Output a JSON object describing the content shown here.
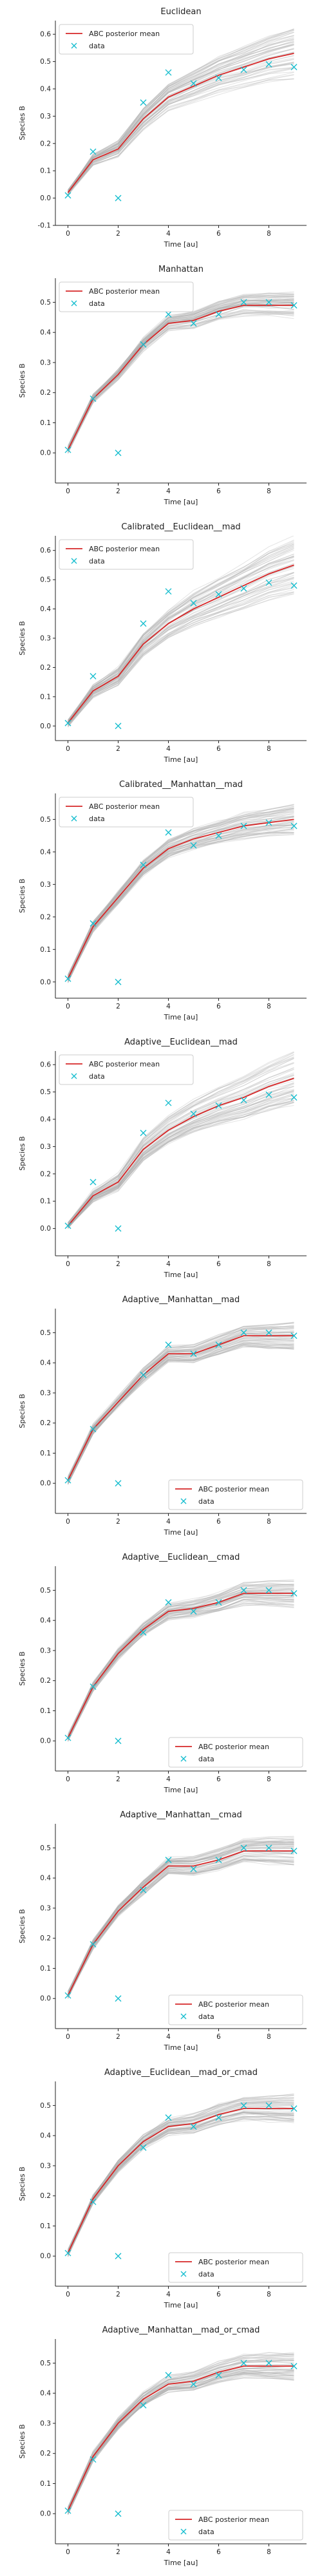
{
  "chart_data": [
    {
      "type": "line",
      "title": "Euclidean",
      "xlabel": "Time [au]",
      "ylabel": "Species B",
      "xlim": [
        -0.5,
        9.5
      ],
      "ylim": [
        -0.1,
        0.65
      ],
      "xticks": [
        0,
        2,
        4,
        6,
        8
      ],
      "yticks": [
        -0.1,
        0.0,
        0.1,
        0.2,
        0.3,
        0.4,
        0.5,
        0.6
      ],
      "grid": false,
      "legend": "upper-left",
      "legend_labels": [
        "ABC posterior mean",
        "data"
      ],
      "colors": {
        "mean": "#d62728",
        "data": "#17becf",
        "samples": "#b0b0b0"
      },
      "series": [
        {
          "kind": "mean-line",
          "x": [
            0,
            1,
            2,
            3,
            4,
            5,
            6,
            7,
            8,
            9
          ],
          "values": [
            0.02,
            0.14,
            0.18,
            0.29,
            0.37,
            0.41,
            0.45,
            0.48,
            0.51,
            0.53
          ]
        },
        {
          "kind": "data-points",
          "x": [
            0,
            1,
            2,
            3,
            4,
            5,
            6,
            7,
            8,
            9
          ],
          "values": [
            0.01,
            0.17,
            0.0,
            0.35,
            0.46,
            0.42,
            0.44,
            0.47,
            0.49,
            0.48
          ]
        }
      ]
    },
    {
      "type": "line",
      "title": "Manhattan",
      "xlabel": "Time [au]",
      "ylabel": "Species B",
      "xlim": [
        -0.5,
        9.5
      ],
      "ylim": [
        -0.1,
        0.58
      ],
      "xticks": [
        0,
        2,
        4,
        6,
        8
      ],
      "yticks": [
        0.0,
        0.1,
        0.2,
        0.3,
        0.4,
        0.5
      ],
      "grid": false,
      "legend": "upper-left",
      "legend_labels": [
        "ABC posterior mean",
        "data"
      ],
      "colors": {
        "mean": "#d62728",
        "data": "#17becf",
        "samples": "#b0b0b0"
      },
      "series": [
        {
          "kind": "mean-line",
          "x": [
            0,
            1,
            2,
            3,
            4,
            5,
            6,
            7,
            8,
            9
          ],
          "values": [
            0.01,
            0.18,
            0.26,
            0.36,
            0.43,
            0.44,
            0.47,
            0.49,
            0.49,
            0.49
          ]
        },
        {
          "kind": "data-points",
          "x": [
            0,
            1,
            2,
            3,
            4,
            5,
            6,
            7,
            8,
            9
          ],
          "values": [
            0.01,
            0.18,
            0.0,
            0.36,
            0.46,
            0.43,
            0.46,
            0.5,
            0.5,
            0.49
          ]
        }
      ]
    },
    {
      "type": "line",
      "title": "Calibrated__Euclidean__mad",
      "xlabel": "Time [au]",
      "ylabel": "Species B",
      "xlim": [
        -0.5,
        9.5
      ],
      "ylim": [
        -0.05,
        0.65
      ],
      "xticks": [
        0,
        2,
        4,
        6,
        8
      ],
      "yticks": [
        0.0,
        0.1,
        0.2,
        0.3,
        0.4,
        0.5,
        0.6
      ],
      "grid": false,
      "legend": "upper-left",
      "legend_labels": [
        "ABC posterior mean",
        "data"
      ],
      "colors": {
        "mean": "#d62728",
        "data": "#17becf",
        "samples": "#b0b0b0"
      },
      "series": [
        {
          "kind": "mean-line",
          "x": [
            0,
            1,
            2,
            3,
            4,
            5,
            6,
            7,
            8,
            9
          ],
          "values": [
            0.01,
            0.12,
            0.17,
            0.28,
            0.35,
            0.4,
            0.44,
            0.48,
            0.52,
            0.55
          ]
        },
        {
          "kind": "data-points",
          "x": [
            0,
            1,
            2,
            3,
            4,
            5,
            6,
            7,
            8,
            9
          ],
          "values": [
            0.01,
            0.17,
            0.0,
            0.35,
            0.46,
            0.42,
            0.45,
            0.47,
            0.49,
            0.48
          ]
        }
      ]
    },
    {
      "type": "line",
      "title": "Calibrated__Manhattan__mad",
      "xlabel": "Time [au]",
      "ylabel": "Species B",
      "xlim": [
        -0.5,
        9.5
      ],
      "ylim": [
        -0.05,
        0.58
      ],
      "xticks": [
        0,
        2,
        4,
        6,
        8
      ],
      "yticks": [
        0.0,
        0.1,
        0.2,
        0.3,
        0.4,
        0.5
      ],
      "grid": false,
      "legend": "upper-left",
      "legend_labels": [
        "ABC posterior mean",
        "data"
      ],
      "colors": {
        "mean": "#d62728",
        "data": "#17becf",
        "samples": "#b0b0b0"
      },
      "series": [
        {
          "kind": "mean-line",
          "x": [
            0,
            1,
            2,
            3,
            4,
            5,
            6,
            7,
            8,
            9
          ],
          "values": [
            0.01,
            0.17,
            0.26,
            0.35,
            0.41,
            0.44,
            0.46,
            0.48,
            0.49,
            0.5
          ]
        },
        {
          "kind": "data-points",
          "x": [
            0,
            1,
            2,
            3,
            4,
            5,
            6,
            7,
            8,
            9
          ],
          "values": [
            0.01,
            0.18,
            0.0,
            0.36,
            0.46,
            0.42,
            0.45,
            0.48,
            0.49,
            0.48
          ]
        }
      ]
    },
    {
      "type": "line",
      "title": "Adaptive__Euclidean__mad",
      "xlabel": "Time [au]",
      "ylabel": "Species B",
      "xlim": [
        -0.5,
        9.5
      ],
      "ylim": [
        -0.1,
        0.65
      ],
      "xticks": [
        0,
        2,
        4,
        6,
        8
      ],
      "yticks": [
        0.0,
        0.1,
        0.2,
        0.3,
        0.4,
        0.5,
        0.6
      ],
      "grid": false,
      "legend": "upper-left",
      "legend_labels": [
        "ABC posterior mean",
        "data"
      ],
      "colors": {
        "mean": "#d62728",
        "data": "#17becf",
        "samples": "#b0b0b0"
      },
      "series": [
        {
          "kind": "mean-line",
          "x": [
            0,
            1,
            2,
            3,
            4,
            5,
            6,
            7,
            8,
            9
          ],
          "values": [
            0.01,
            0.12,
            0.17,
            0.29,
            0.36,
            0.41,
            0.45,
            0.48,
            0.52,
            0.55
          ]
        },
        {
          "kind": "data-points",
          "x": [
            0,
            1,
            2,
            3,
            4,
            5,
            6,
            7,
            8,
            9
          ],
          "values": [
            0.01,
            0.17,
            0.0,
            0.35,
            0.46,
            0.42,
            0.45,
            0.47,
            0.49,
            0.48
          ]
        }
      ]
    },
    {
      "type": "line",
      "title": "Adaptive__Manhattan__mad",
      "xlabel": "Time [au]",
      "ylabel": "Species B",
      "xlim": [
        -0.5,
        9.5
      ],
      "ylim": [
        -0.1,
        0.58
      ],
      "xticks": [
        0,
        2,
        4,
        6,
        8
      ],
      "yticks": [
        0.0,
        0.1,
        0.2,
        0.3,
        0.4,
        0.5
      ],
      "grid": false,
      "legend": "lower-right",
      "legend_labels": [
        "ABC posterior mean",
        "data"
      ],
      "colors": {
        "mean": "#d62728",
        "data": "#17becf",
        "samples": "#b0b0b0"
      },
      "series": [
        {
          "kind": "mean-line",
          "x": [
            0,
            1,
            2,
            3,
            4,
            5,
            6,
            7,
            8,
            9
          ],
          "values": [
            0.01,
            0.18,
            0.27,
            0.36,
            0.43,
            0.43,
            0.46,
            0.49,
            0.49,
            0.49
          ]
        },
        {
          "kind": "data-points",
          "x": [
            0,
            1,
            2,
            3,
            4,
            5,
            6,
            7,
            8,
            9
          ],
          "values": [
            0.01,
            0.18,
            0.0,
            0.36,
            0.46,
            0.43,
            0.46,
            0.5,
            0.5,
            0.49
          ]
        }
      ]
    },
    {
      "type": "line",
      "title": "Adaptive__Euclidean__cmad",
      "xlabel": "Time [au]",
      "ylabel": "Species B",
      "xlim": [
        -0.5,
        9.5
      ],
      "ylim": [
        -0.1,
        0.58
      ],
      "xticks": [
        0,
        2,
        4,
        6,
        8
      ],
      "yticks": [
        0.0,
        0.1,
        0.2,
        0.3,
        0.4,
        0.5
      ],
      "grid": false,
      "legend": "lower-right",
      "legend_labels": [
        "ABC posterior mean",
        "data"
      ],
      "colors": {
        "mean": "#d62728",
        "data": "#17becf",
        "samples": "#b0b0b0"
      },
      "series": [
        {
          "kind": "mean-line",
          "x": [
            0,
            1,
            2,
            3,
            4,
            5,
            6,
            7,
            8,
            9
          ],
          "values": [
            0.01,
            0.18,
            0.29,
            0.37,
            0.43,
            0.44,
            0.46,
            0.49,
            0.49,
            0.49
          ]
        },
        {
          "kind": "data-points",
          "x": [
            0,
            1,
            2,
            3,
            4,
            5,
            6,
            7,
            8,
            9
          ],
          "values": [
            0.01,
            0.18,
            0.0,
            0.36,
            0.46,
            0.43,
            0.46,
            0.5,
            0.5,
            0.49
          ]
        }
      ]
    },
    {
      "type": "line",
      "title": "Adaptive__Manhattan__cmad",
      "xlabel": "Time [au]",
      "ylabel": "Species B",
      "xlim": [
        -0.5,
        9.5
      ],
      "ylim": [
        -0.1,
        0.58
      ],
      "xticks": [
        0,
        2,
        4,
        6,
        8
      ],
      "yticks": [
        0.0,
        0.1,
        0.2,
        0.3,
        0.4,
        0.5
      ],
      "grid": false,
      "legend": "lower-right",
      "legend_labels": [
        "ABC posterior mean",
        "data"
      ],
      "colors": {
        "mean": "#d62728",
        "data": "#17becf",
        "samples": "#b0b0b0"
      },
      "series": [
        {
          "kind": "mean-line",
          "x": [
            0,
            1,
            2,
            3,
            4,
            5,
            6,
            7,
            8,
            9
          ],
          "values": [
            0.01,
            0.18,
            0.29,
            0.37,
            0.44,
            0.44,
            0.46,
            0.49,
            0.49,
            0.49
          ]
        },
        {
          "kind": "data-points",
          "x": [
            0,
            1,
            2,
            3,
            4,
            5,
            6,
            7,
            8,
            9
          ],
          "values": [
            0.01,
            0.18,
            0.0,
            0.36,
            0.46,
            0.43,
            0.46,
            0.5,
            0.5,
            0.49
          ]
        }
      ]
    },
    {
      "type": "line",
      "title": "Adaptive__Euclidean__mad_or_cmad",
      "xlabel": "Time [au]",
      "ylabel": "Species B",
      "xlim": [
        -0.5,
        9.5
      ],
      "ylim": [
        -0.1,
        0.58
      ],
      "xticks": [
        0,
        2,
        4,
        6,
        8
      ],
      "yticks": [
        0.0,
        0.1,
        0.2,
        0.3,
        0.4,
        0.5
      ],
      "grid": false,
      "legend": "lower-right",
      "legend_labels": [
        "ABC posterior mean",
        "data"
      ],
      "colors": {
        "mean": "#d62728",
        "data": "#17becf",
        "samples": "#b0b0b0"
      },
      "series": [
        {
          "kind": "mean-line",
          "x": [
            0,
            1,
            2,
            3,
            4,
            5,
            6,
            7,
            8,
            9
          ],
          "values": [
            0.01,
            0.19,
            0.3,
            0.38,
            0.43,
            0.44,
            0.47,
            0.49,
            0.49,
            0.49
          ]
        },
        {
          "kind": "data-points",
          "x": [
            0,
            1,
            2,
            3,
            4,
            5,
            6,
            7,
            8,
            9
          ],
          "values": [
            0.01,
            0.18,
            0.0,
            0.36,
            0.46,
            0.43,
            0.46,
            0.5,
            0.5,
            0.49
          ]
        }
      ]
    },
    {
      "type": "line",
      "title": "Adaptive__Manhattan__mad_or_cmad",
      "xlabel": "Time [au]",
      "ylabel": "Species B",
      "xlim": [
        -0.5,
        9.5
      ],
      "ylim": [
        -0.1,
        0.58
      ],
      "xticks": [
        0,
        2,
        4,
        6,
        8
      ],
      "yticks": [
        0.0,
        0.1,
        0.2,
        0.3,
        0.4,
        0.5
      ],
      "grid": false,
      "legend": "lower-right",
      "legend_labels": [
        "ABC posterior mean",
        "data"
      ],
      "colors": {
        "mean": "#d62728",
        "data": "#17becf",
        "samples": "#b0b0b0"
      },
      "series": [
        {
          "kind": "mean-line",
          "x": [
            0,
            1,
            2,
            3,
            4,
            5,
            6,
            7,
            8,
            9
          ],
          "values": [
            0.01,
            0.19,
            0.3,
            0.38,
            0.43,
            0.44,
            0.47,
            0.49,
            0.49,
            0.49
          ]
        },
        {
          "kind": "data-points",
          "x": [
            0,
            1,
            2,
            3,
            4,
            5,
            6,
            7,
            8,
            9
          ],
          "values": [
            0.01,
            0.18,
            0.0,
            0.36,
            0.46,
            0.43,
            0.46,
            0.5,
            0.5,
            0.49
          ]
        }
      ]
    }
  ]
}
